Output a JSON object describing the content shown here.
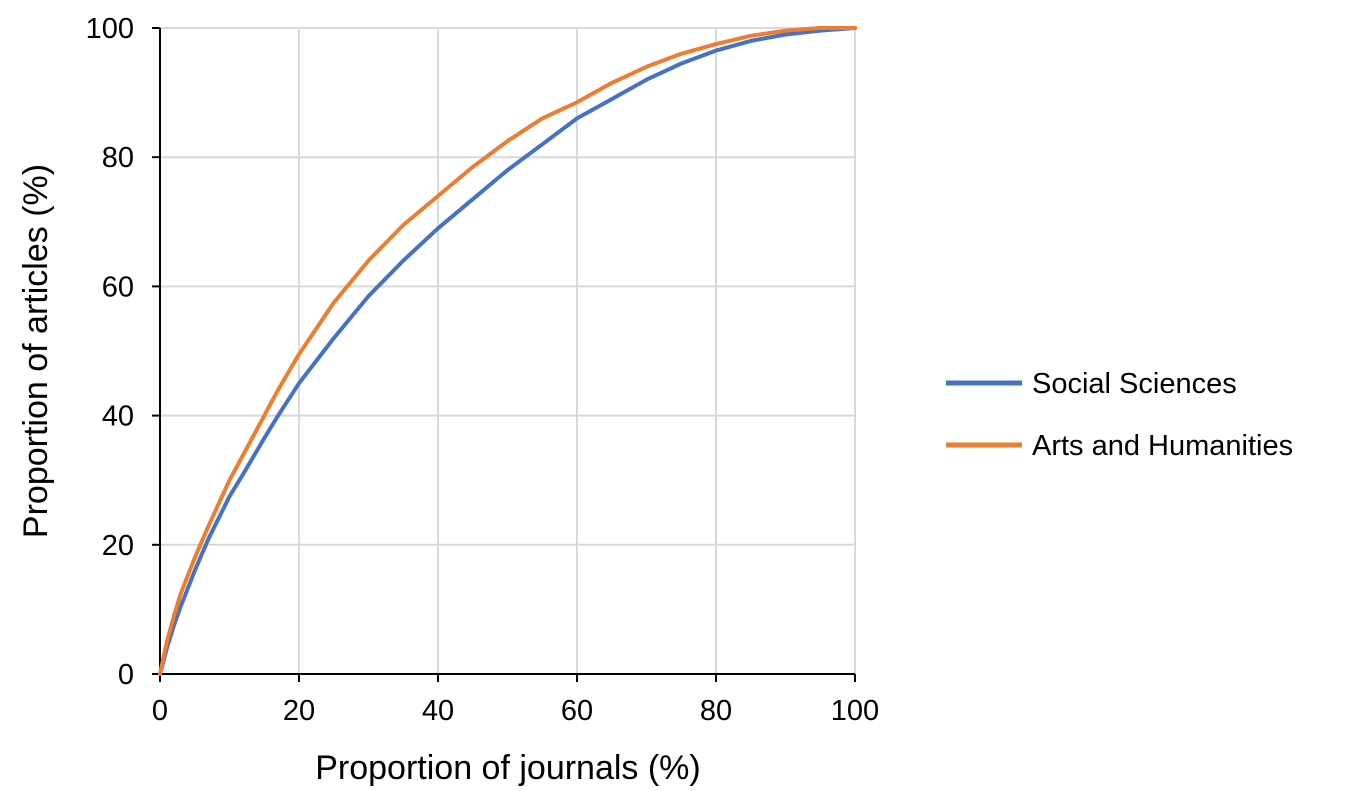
{
  "chart_data": {
    "type": "line",
    "title": "",
    "xlabel": "Proportion of journals (%)",
    "ylabel": "Proportion of articles (%)",
    "xlim": [
      0,
      100
    ],
    "ylim": [
      0,
      100
    ],
    "x_ticks": [
      "0",
      "20",
      "40",
      "60",
      "80",
      "100"
    ],
    "y_ticks": [
      "0",
      "20",
      "40",
      "60",
      "80",
      "100"
    ],
    "grid": true,
    "legend_position": "right",
    "series": [
      {
        "name": "Social Sciences",
        "color": "#4472C4",
        "points": [
          [
            0,
            0
          ],
          [
            1,
            4
          ],
          [
            2,
            7.5
          ],
          [
            3,
            10.5
          ],
          [
            5,
            16
          ],
          [
            7,
            21
          ],
          [
            10,
            27.5
          ],
          [
            12,
            31
          ],
          [
            15,
            36.5
          ],
          [
            17,
            40
          ],
          [
            20,
            45
          ],
          [
            25,
            52
          ],
          [
            30,
            58.5
          ],
          [
            35,
            64
          ],
          [
            40,
            69
          ],
          [
            45,
            73.5
          ],
          [
            50,
            78
          ],
          [
            55,
            82
          ],
          [
            60,
            86
          ],
          [
            65,
            89
          ],
          [
            70,
            92
          ],
          [
            75,
            94.5
          ],
          [
            80,
            96.5
          ],
          [
            85,
            98
          ],
          [
            90,
            99
          ],
          [
            95,
            99.6
          ],
          [
            100,
            100
          ]
        ]
      },
      {
        "name": "Arts and Humanities",
        "color": "#ED7D31",
        "points": [
          [
            0,
            0
          ],
          [
            1,
            5
          ],
          [
            2,
            9
          ],
          [
            3,
            12.5
          ],
          [
            5,
            18
          ],
          [
            7,
            23
          ],
          [
            10,
            30
          ],
          [
            12,
            34
          ],
          [
            15,
            40
          ],
          [
            17,
            44
          ],
          [
            20,
            49.5
          ],
          [
            25,
            57.5
          ],
          [
            30,
            64
          ],
          [
            35,
            69.5
          ],
          [
            40,
            74
          ],
          [
            45,
            78.5
          ],
          [
            50,
            82.5
          ],
          [
            55,
            86
          ],
          [
            60,
            88.5
          ],
          [
            65,
            91.5
          ],
          [
            70,
            94
          ],
          [
            75,
            96
          ],
          [
            80,
            97.5
          ],
          [
            85,
            98.8
          ],
          [
            90,
            99.6
          ],
          [
            95,
            100
          ],
          [
            100,
            100
          ]
        ]
      }
    ]
  }
}
